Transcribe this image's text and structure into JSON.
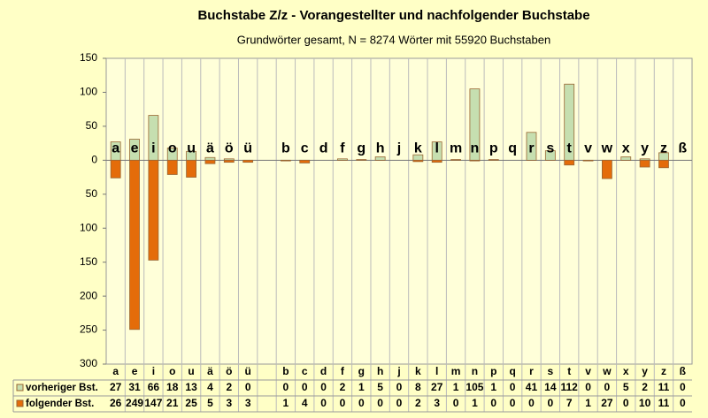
{
  "chart_data": {
    "type": "bar",
    "title": "Buchstabe Z/z - Vorangestellter und nachfolgender Buchstabe",
    "subtitle": "Grundwörter gesamt,  N = 8274 Wörter mit 55920 Buchstaben",
    "categories": [
      "a",
      "e",
      "i",
      "o",
      "u",
      "ä",
      "ö",
      "ü",
      null,
      "b",
      "c",
      "d",
      "f",
      "g",
      "h",
      "j",
      "k",
      "l",
      "m",
      "n",
      "p",
      "q",
      "r",
      "s",
      "t",
      "v",
      "w",
      "x",
      "y",
      "z",
      "ß"
    ],
    "series": [
      {
        "name": "vorheriger Bst.",
        "color": "#c6dfb0",
        "values": [
          27,
          31,
          66,
          18,
          13,
          4,
          2,
          0,
          null,
          0,
          0,
          0,
          2,
          1,
          5,
          0,
          8,
          27,
          1,
          105,
          1,
          0,
          41,
          14,
          112,
          0,
          0,
          5,
          2,
          11,
          0
        ]
      },
      {
        "name": "folgender Bst.",
        "color": "#e46c0a",
        "values": [
          -26,
          -249,
          -147,
          -21,
          -25,
          -5,
          -3,
          -3,
          null,
          -1,
          -4,
          0,
          0,
          0,
          0,
          0,
          -2,
          -3,
          0,
          -1,
          0,
          0,
          0,
          0,
          -7,
          -1,
          -27,
          0,
          -10,
          -11,
          0
        ],
        "value_labels": [
          "26",
          "249",
          "147",
          "21",
          "25",
          "5",
          "3",
          "3",
          null,
          "1",
          "4",
          "0",
          "0",
          "0",
          "0",
          "0",
          "2",
          "3",
          "0",
          "1",
          "0",
          "0",
          "0",
          "0",
          "7",
          "1",
          "27",
          "0",
          "10",
          "11",
          "0"
        ]
      }
    ],
    "ylim": [
      -300,
      150
    ],
    "yticks": [
      {
        "value": -300,
        "label": "300"
      },
      {
        "value": -250,
        "label": "250"
      },
      {
        "value": -200,
        "label": "200"
      },
      {
        "value": -150,
        "label": "150"
      },
      {
        "value": -100,
        "label": "100"
      },
      {
        "value": -50,
        "label": "50"
      },
      0,
      50,
      100,
      150
    ]
  }
}
